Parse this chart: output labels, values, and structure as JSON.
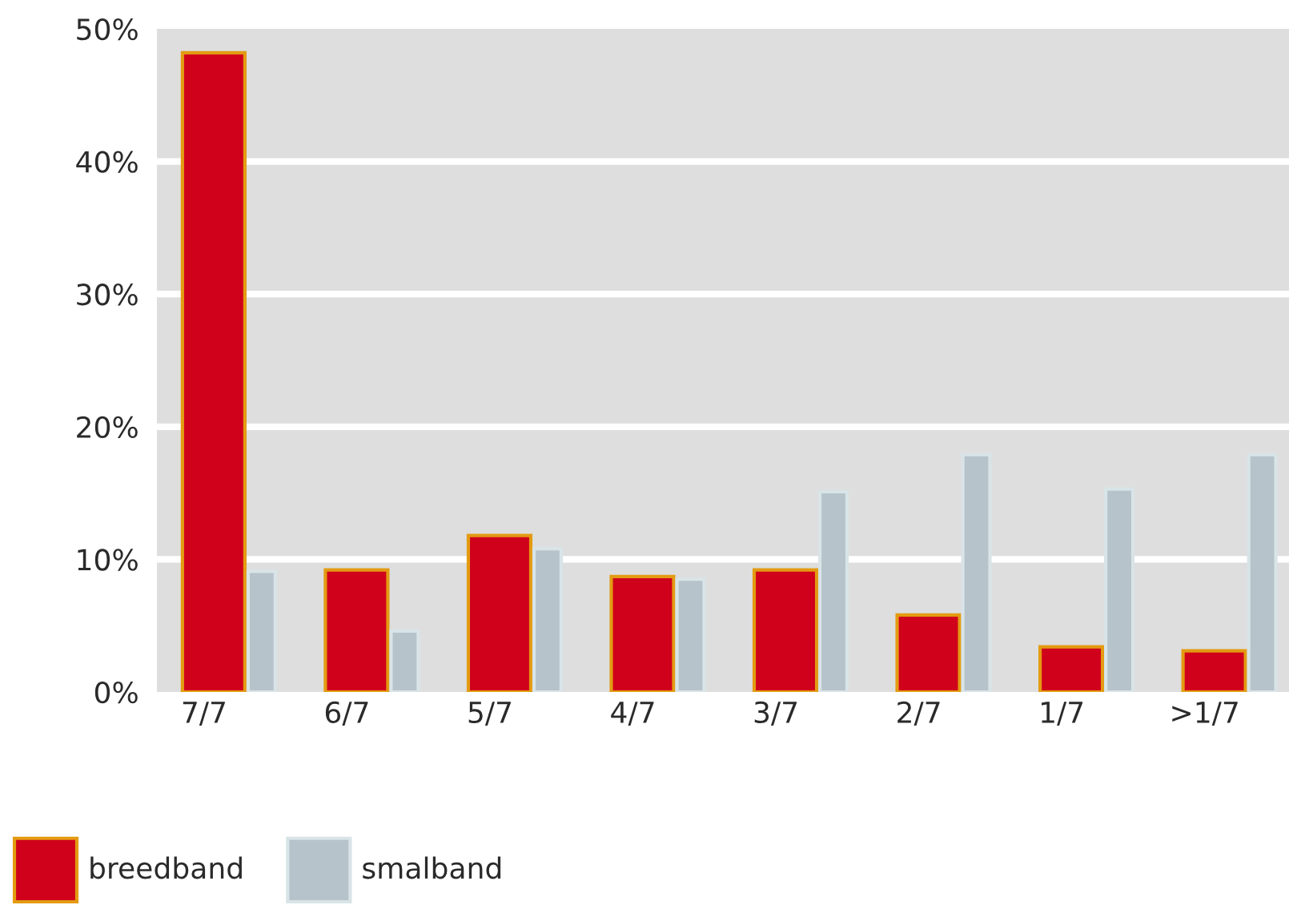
{
  "chart_data": {
    "type": "bar",
    "categories": [
      "7/7",
      "6/7",
      "5/7",
      "4/7",
      "3/7",
      "2/7",
      "1/7",
      ">1/7"
    ],
    "series": [
      {
        "name": "breedband",
        "color": "#d0021b",
        "values": [
          48.2,
          9.2,
          11.8,
          8.7,
          9.2,
          5.8,
          3.4,
          3.1
        ]
      },
      {
        "name": "smalband",
        "color": "#b6c3ca",
        "values": [
          9.1,
          4.6,
          10.8,
          8.5,
          15.1,
          17.9,
          15.3,
          17.9
        ]
      }
    ],
    "ylim": [
      0,
      50
    ],
    "yticks": [
      {
        "value": 0,
        "label": "0%"
      },
      {
        "value": 10,
        "label": "10%"
      },
      {
        "value": 20,
        "label": "20%"
      },
      {
        "value": 30,
        "label": "30%"
      },
      {
        "value": 40,
        "label": "40%"
      },
      {
        "value": 50,
        "label": "50%"
      }
    ],
    "grid": "y",
    "legend": "bottom left"
  }
}
